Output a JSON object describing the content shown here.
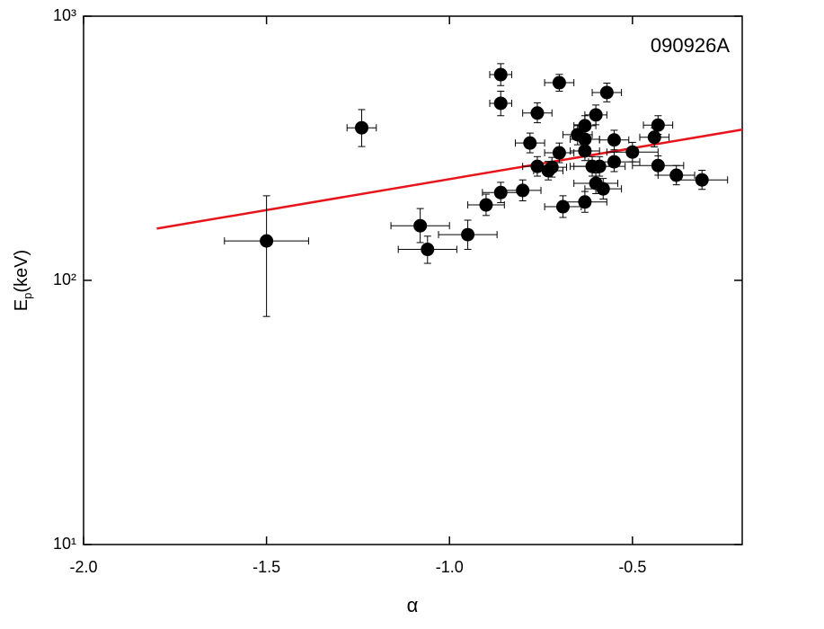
{
  "chart_data": {
    "type": "scatter",
    "annotation": "090926A",
    "xlabel": "α",
    "ylabel_parts": [
      "E",
      "p",
      "(keV)"
    ],
    "xlim": [
      -2.0,
      -0.2
    ],
    "xticks": [
      {
        "value": -2.0,
        "label": "-2.0"
      },
      -1.5,
      {
        "value": -1.0,
        "label": "-1.0"
      },
      -0.5
    ],
    "ylim": [
      10,
      1000
    ],
    "log_y": true,
    "yticks": [
      {
        "value": 10,
        "label": "10¹"
      },
      {
        "value": 100,
        "label": "10²"
      },
      {
        "value": 1000,
        "label": "10³"
      }
    ],
    "series": [
      {
        "color": "#000000",
        "x": [
          -1.5,
          -1.24,
          -1.08,
          -1.06,
          -0.95,
          -0.9,
          -0.86,
          -0.86,
          -0.86,
          -0.8,
          -0.78,
          -0.76,
          -0.76,
          -0.73,
          -0.72,
          -0.7,
          -0.7,
          -0.69,
          -0.65,
          -0.63,
          -0.63,
          -0.63,
          -0.63,
          -0.61,
          -0.6,
          -0.6,
          -0.59,
          -0.58,
          -0.57,
          -0.55,
          -0.55,
          -0.5,
          -0.44,
          -0.43,
          -0.43,
          -0.38,
          -0.31
        ],
        "values": [
          141,
          378,
          161,
          131,
          149,
          193,
          215,
          601,
          468,
          219,
          331,
          430,
          270,
          260,
          268,
          560,
          304,
          190,
          356,
          385,
          342,
          309,
          198,
          270,
          423,
          233,
          270,
          222,
          514,
          340,
          281,
          306,
          348,
          387,
          272,
          250,
          240
        ],
        "xerr": [
          0.115,
          0.04,
          0.08,
          0.08,
          0.08,
          0.05,
          0.05,
          0.03,
          0.03,
          0.05,
          0.04,
          0.04,
          0.04,
          0.04,
          0.04,
          0.04,
          0.04,
          0.05,
          0.04,
          0.03,
          0.04,
          0.04,
          0.06,
          0.06,
          0.03,
          0.06,
          0.07,
          0.05,
          0.04,
          0.04,
          0.07,
          0.07,
          0.04,
          0.04,
          0.07,
          0.05,
          0.07
        ],
        "yerr_minus": [
          68,
          57,
          22,
          15,
          18,
          17,
          18,
          55,
          48,
          19,
          27,
          35,
          22,
          20,
          22,
          40,
          25,
          17,
          30,
          32,
          28,
          25,
          17,
          22,
          35,
          20,
          22,
          19,
          40,
          28,
          23,
          25,
          28,
          30,
          22,
          20,
          19
        ],
        "yerr_plus": [
          68,
          65,
          26,
          16,
          20,
          19,
          20,
          60,
          52,
          21,
          30,
          40,
          24,
          22,
          24,
          42,
          27,
          19,
          32,
          35,
          30,
          27,
          19,
          24,
          38,
          22,
          24,
          21,
          44,
          30,
          25,
          27,
          30,
          33,
          24,
          22,
          21
        ]
      }
    ],
    "fit_line": {
      "color": "#e8141b",
      "x": [
        -1.8,
        -0.2
      ],
      "y": [
        157,
        372
      ]
    }
  }
}
